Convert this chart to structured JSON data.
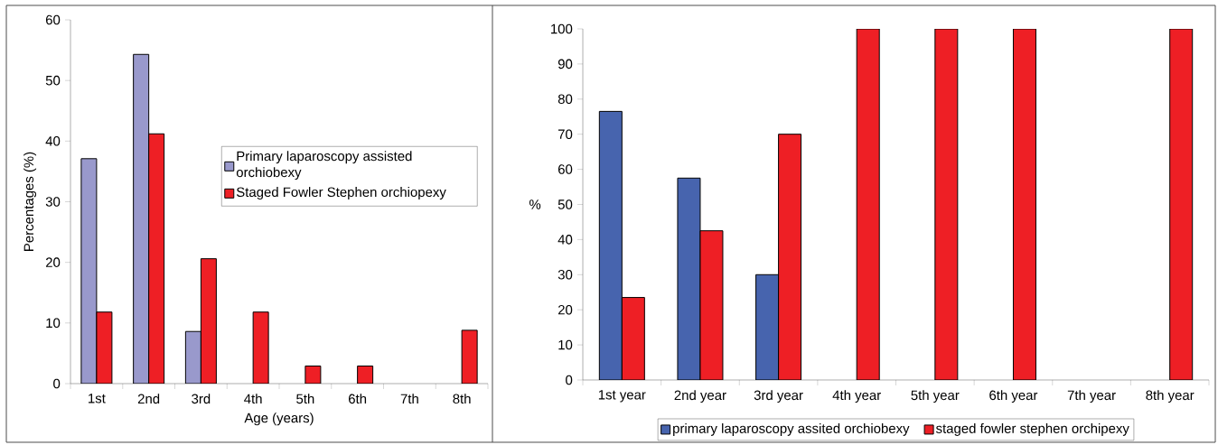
{
  "chart_data": [
    {
      "type": "bar",
      "xlabel": "Age (years)",
      "ylabel": "Percentages (%)",
      "categories": [
        "1st",
        "2nd",
        "3rd",
        "4th",
        "5th",
        "6th",
        "7th",
        "8th"
      ],
      "series": [
        {
          "name": "Primary laparoscopy assisted orchiobexy",
          "color": "#9999cc",
          "values": [
            37.1,
            54.3,
            8.6,
            null,
            null,
            null,
            null,
            null
          ]
        },
        {
          "name": "Staged Fowler Stephen orchiopexy",
          "color": "#ee1f25",
          "values": [
            11.8,
            41.2,
            20.6,
            11.8,
            2.9,
            2.9,
            null,
            8.8
          ]
        }
      ],
      "ylim": [
        0,
        60
      ],
      "yticks": [
        0,
        10,
        20,
        30,
        40,
        50,
        60
      ],
      "legend": "right"
    },
    {
      "type": "bar",
      "ylabel": "%",
      "categories": [
        "1st year",
        "2nd year",
        "3rd year",
        "4th year",
        "5th year",
        "6th year",
        "7th year",
        "8th year"
      ],
      "series": [
        {
          "name": "primary laparoscopy assited orchiobexy",
          "color": "#4764ae",
          "values": [
            76.5,
            57.5,
            30,
            null,
            null,
            null,
            null,
            null
          ]
        },
        {
          "name": "staged fowler stephen orchipexy",
          "color": "#ee1f25",
          "values": [
            23.5,
            42.5,
            70,
            100,
            100,
            100,
            null,
            100
          ]
        }
      ],
      "ylim": [
        0,
        100
      ],
      "yticks": [
        0,
        10,
        20,
        30,
        40,
        50,
        60,
        70,
        80,
        90,
        100
      ],
      "legend": "bottom"
    }
  ]
}
